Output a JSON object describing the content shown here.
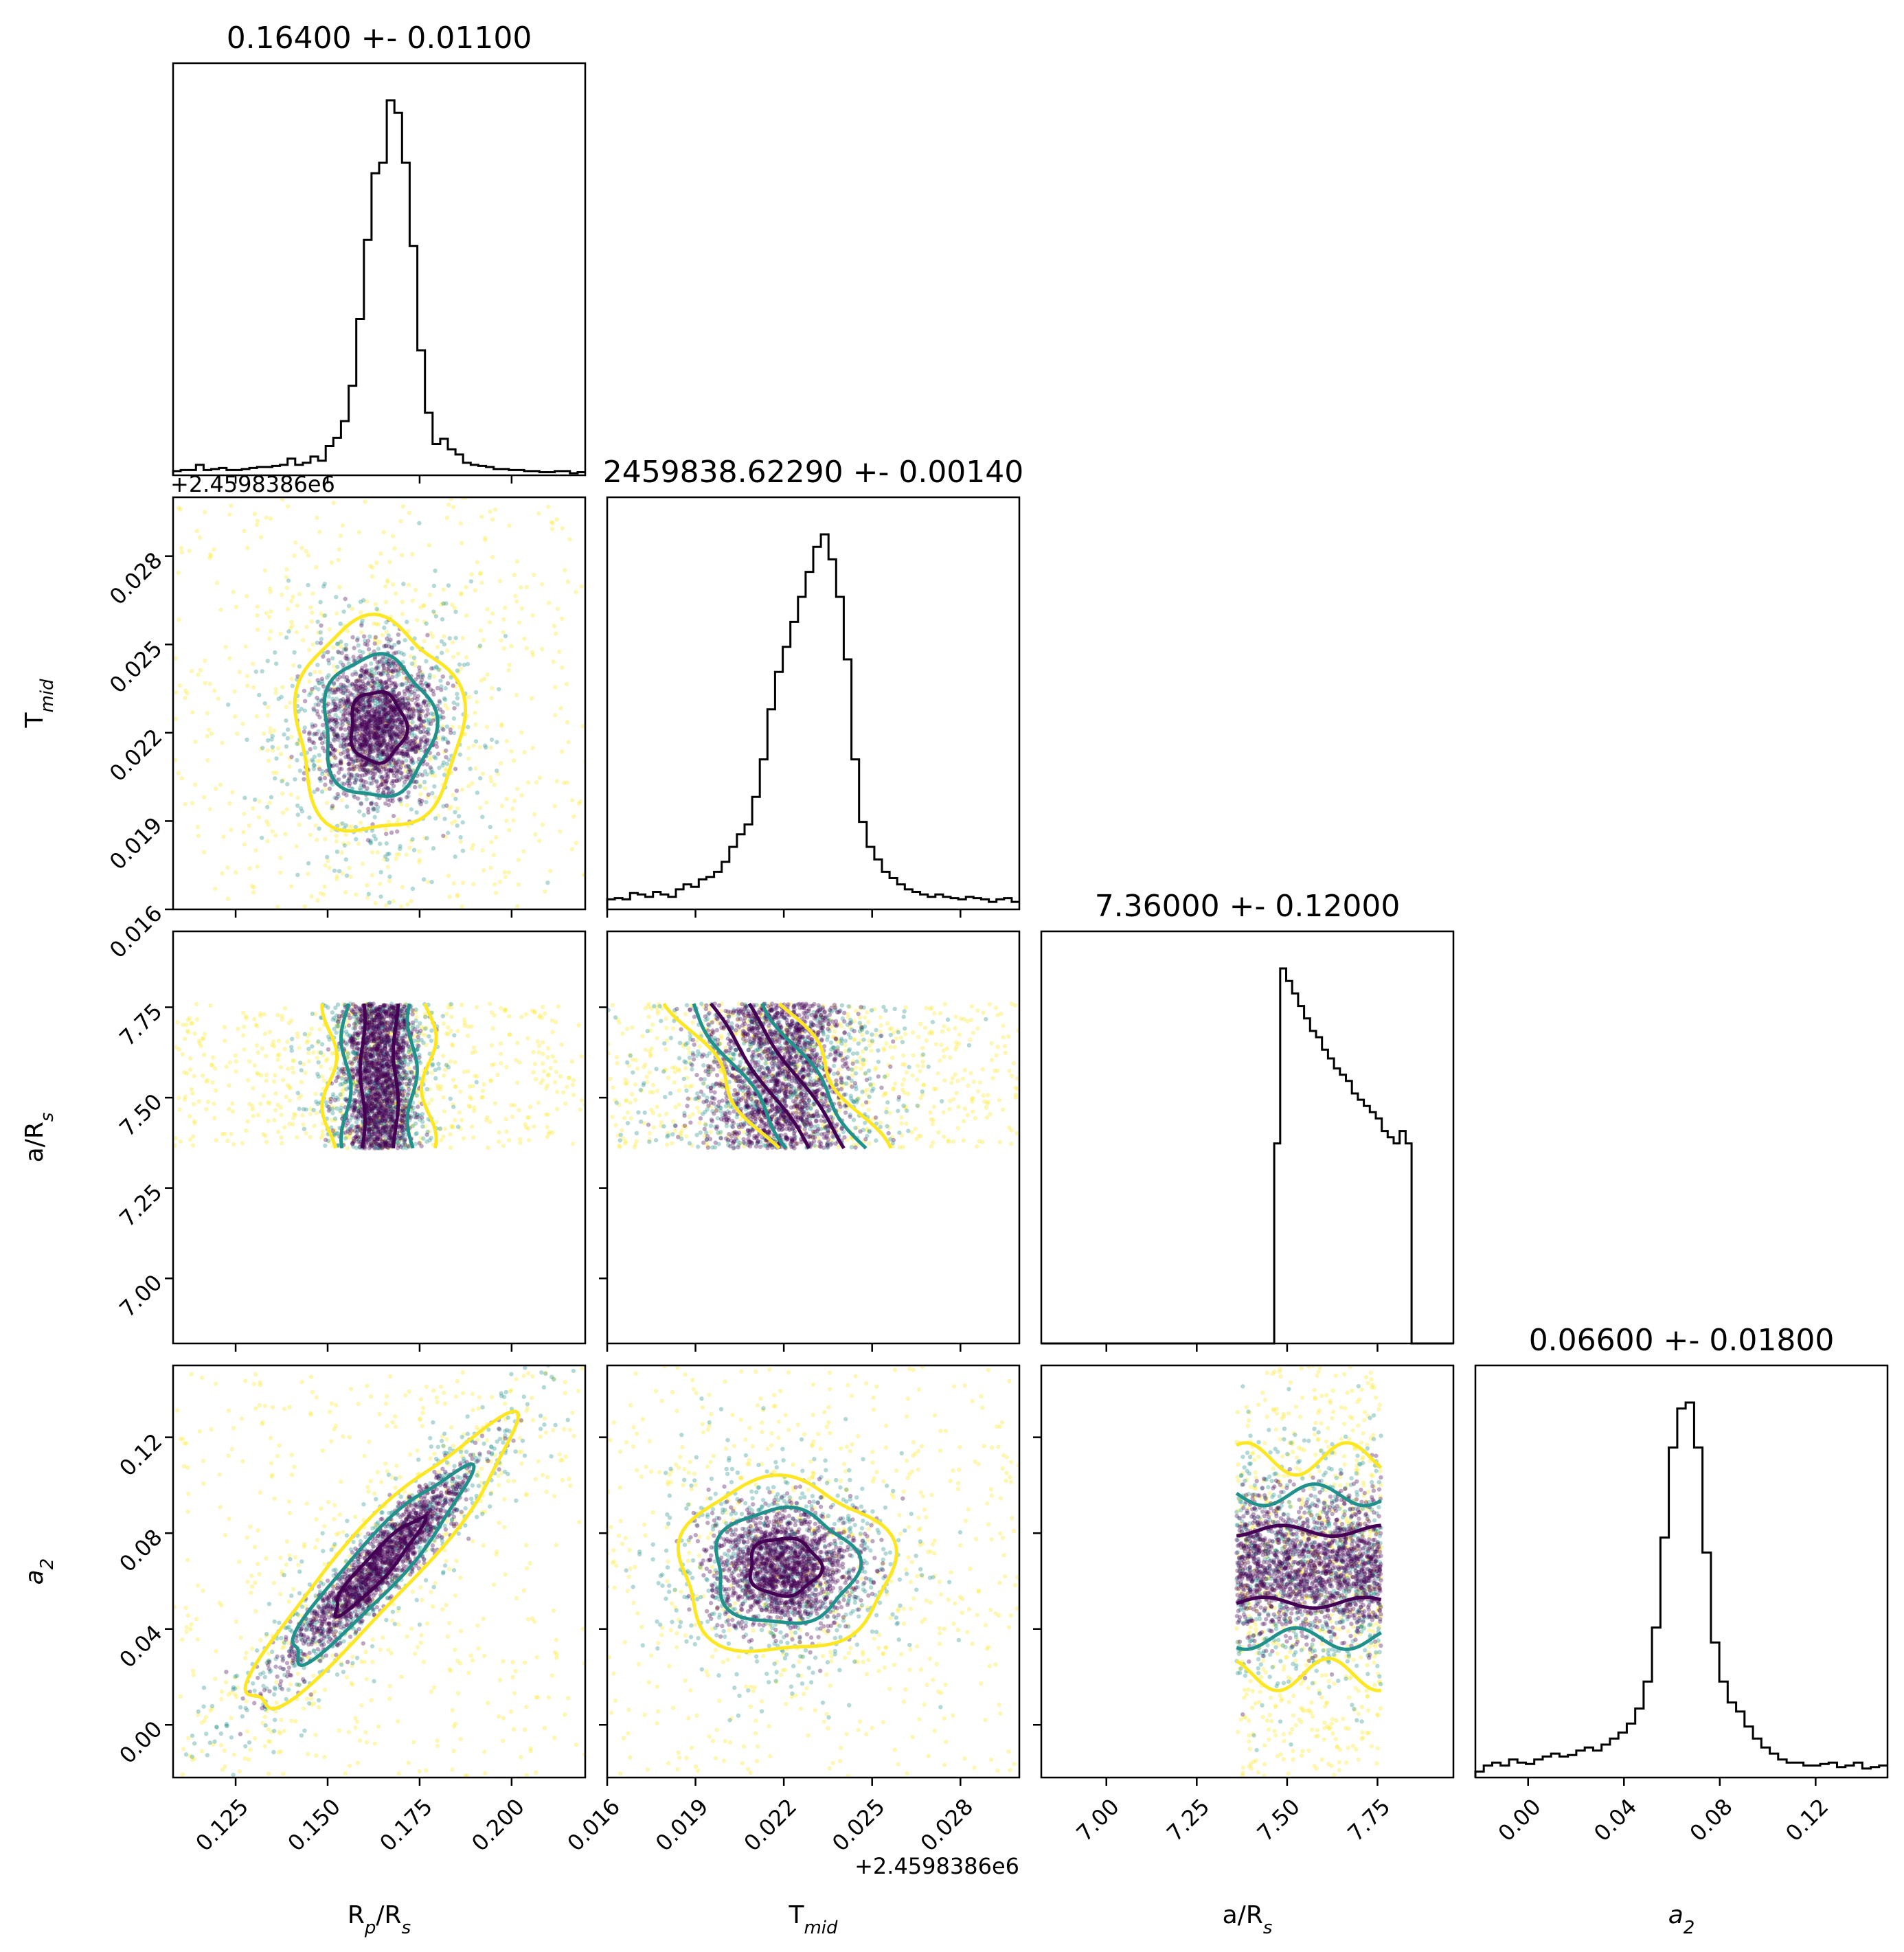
{
  "chart_data": {
    "type": "corner",
    "parameters": [
      {
        "key": "rprs",
        "label_main": "R",
        "label_sub": "p",
        "label_rest": "/R",
        "label_sub2": "s",
        "title": "0.16400 +- 0.01100",
        "range": [
          0.108,
          0.22
        ],
        "ticks": [
          "0.125",
          "0.150",
          "0.175",
          "0.200"
        ],
        "tick_values": [
          0.125,
          0.15,
          0.175,
          0.2
        ]
      },
      {
        "key": "tmid",
        "label_main": "T",
        "label_sub": "mid",
        "label_rest": "",
        "label_sub2": "",
        "title": "2459838.62290 +- 0.00140",
        "offset": "+2.4598386e6",
        "range": [
          0.016,
          0.03
        ],
        "ticks": [
          "0.016",
          "0.019",
          "0.022",
          "0.025",
          "0.028"
        ],
        "tick_values": [
          0.016,
          0.019,
          0.022,
          0.025,
          0.028
        ]
      },
      {
        "key": "ars",
        "label_main": "a/R",
        "label_sub": "s",
        "label_rest": "",
        "label_sub2": "",
        "title": "7.36000 +- 0.12000",
        "range": [
          6.82,
          7.96
        ],
        "ticks": [
          "7.00",
          "7.25",
          "7.50",
          "7.75"
        ],
        "tick_values": [
          7.0,
          7.25,
          7.5,
          7.75
        ]
      },
      {
        "key": "a2",
        "label_main": "a",
        "label_sub": "2",
        "label_rest": "",
        "label_sub2": "",
        "label_italic": true,
        "title": "0.06600 +- 0.01800",
        "range": [
          -0.022,
          0.15
        ],
        "ticks": [
          "0.00",
          "0.04",
          "0.08",
          "0.12"
        ],
        "tick_values": [
          0.0,
          0.04,
          0.08,
          0.12
        ]
      }
    ],
    "histograms": {
      "rprs": {
        "bins": [
          0.108,
          0.22
        ],
        "counts": [
          4,
          5,
          5,
          10,
          5,
          6,
          7,
          5,
          5,
          6,
          7,
          8,
          8,
          9,
          10,
          16,
          10,
          12,
          18,
          14,
          28,
          36,
          52,
          86,
          150,
          226,
          290,
          300,
          360,
          348,
          300,
          220,
          120,
          60,
          30,
          35,
          25,
          20,
          12,
          10,
          9,
          8,
          6,
          6,
          5,
          5,
          4,
          4,
          3,
          3,
          4,
          4,
          2,
          3
        ]
      },
      "tmid": {
        "bins": [
          0.016,
          0.03
        ],
        "counts": [
          8,
          9,
          8,
          13,
          12,
          10,
          14,
          12,
          10,
          16,
          20,
          18,
          24,
          26,
          30,
          38,
          50,
          60,
          68,
          90,
          120,
          160,
          190,
          210,
          230,
          250,
          270,
          290,
          300,
          280,
          250,
          200,
          120,
          70,
          50,
          40,
          30,
          25,
          20,
          16,
          14,
          12,
          10,
          12,
          10,
          9,
          8,
          10,
          9,
          8,
          6,
          8,
          9,
          6
        ]
      },
      "ars": {
        "bins": [
          6.82,
          7.96
        ],
        "counts": [
          0,
          0,
          0,
          0,
          0,
          0,
          0,
          0,
          0,
          0,
          0,
          0,
          0,
          0,
          0,
          0,
          0,
          0,
          0,
          0,
          0,
          0,
          0,
          0,
          0,
          0,
          0,
          0,
          0,
          0,
          0,
          0,
          0,
          0,
          0,
          0,
          0,
          0,
          0,
          160,
          300,
          290,
          280,
          270,
          260,
          250,
          245,
          235,
          228,
          220,
          215,
          210,
          200,
          195,
          190,
          185,
          180,
          170,
          165,
          160,
          170,
          160,
          0,
          0,
          0,
          0,
          0,
          0,
          0
        ]
      },
      "a2": {
        "bins": [
          -0.022,
          0.15
        ],
        "counts": [
          4,
          8,
          10,
          8,
          12,
          10,
          9,
          12,
          14,
          16,
          14,
          15,
          18,
          20,
          18,
          22,
          26,
          30,
          36,
          46,
          64,
          100,
          160,
          220,
          246,
          250,
          220,
          150,
          90,
          64,
          50,
          44,
          34,
          26,
          20,
          16,
          12,
          10,
          10,
          8,
          8,
          9,
          10,
          7,
          8,
          10,
          6,
          7,
          8
        ]
      }
    },
    "pairs": [
      {
        "x": "rprs",
        "y": "tmid",
        "center": [
          0.1635,
          0.0222
        ],
        "sigma": [
          0.0075,
          0.0012
        ],
        "rho": 0.0
      },
      {
        "x": "rprs",
        "y": "ars",
        "center": [
          0.164,
          7.55
        ],
        "sigma": [
          0.0045,
          0.12
        ],
        "rho": 0.0
      },
      {
        "x": "tmid",
        "y": "ars",
        "center": [
          0.0218,
          7.56
        ],
        "sigma": [
          0.0012,
          0.12
        ],
        "rho": -0.85
      },
      {
        "x": "rprs",
        "y": "a2",
        "center": [
          0.1635,
          0.066
        ],
        "sigma": [
          0.012,
          0.02
        ],
        "rho": 0.93
      },
      {
        "x": "tmid",
        "y": "a2",
        "center": [
          0.022,
          0.066
        ],
        "sigma": [
          0.0012,
          0.012
        ],
        "rho": 0.0
      },
      {
        "x": "ars",
        "y": "a2",
        "center": [
          7.55,
          0.066
        ],
        "sigma": [
          0.12,
          0.015
        ],
        "rho": 0.0
      }
    ],
    "colors": {
      "inner": "#440154",
      "middle": "#21918c",
      "outer": "#fde725",
      "hist": "#000000"
    }
  }
}
